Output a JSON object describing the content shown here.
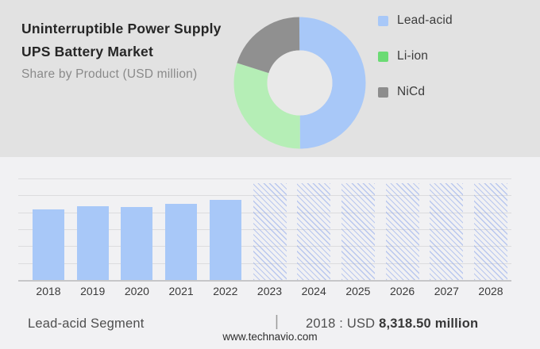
{
  "header": {
    "title_line1": "Uninterruptible Power Supply",
    "title_line2": "UPS Battery Market",
    "subtitle": "Share by Product (USD million)"
  },
  "legend": {
    "items": [
      {
        "label": "Lead-acid",
        "color": "#a8c8f8"
      },
      {
        "label": "Li-ion",
        "color": "#6bdb74"
      },
      {
        "label": "NiCd",
        "color": "#8d8d8d"
      }
    ]
  },
  "chart_data": [
    {
      "type": "pie",
      "variant": "donut",
      "title": "Share by Product (USD million)",
      "labels": [
        "Lead-acid",
        "Li-ion",
        "NiCd"
      ],
      "values_pct": [
        50,
        30,
        20
      ],
      "colors": [
        "#a8c8f8",
        "#b5eeb6",
        "#909090"
      ],
      "legend_position": "right"
    },
    {
      "type": "bar",
      "categories": [
        "2018",
        "2019",
        "2020",
        "2021",
        "2022",
        "2023",
        "2024",
        "2025",
        "2026",
        "2027",
        "2028"
      ],
      "values": [
        8318.5,
        8720,
        8630,
        9000,
        9470,
        null,
        null,
        null,
        null,
        null,
        null
      ],
      "forecast_years_hatched": [
        "2023",
        "2024",
        "2025",
        "2026",
        "2027",
        "2028"
      ],
      "ylim": [
        0,
        12000
      ],
      "gridline_step": 2000,
      "grid": true,
      "bar_color": "#a8c8f8",
      "xlabel": "",
      "ylabel": "",
      "unit": "USD million"
    }
  ],
  "footer": {
    "segment_label": "Lead-acid Segment",
    "separator": "|",
    "value_prefix": "2018 : USD ",
    "value_bold": "8,318.50 million",
    "website": "www.technavio.com"
  },
  "colors": {
    "hero_bg": "#e2e2e2",
    "lower_bg": "#f1f1f3",
    "accent_blue": "#a8c8f8",
    "donut_green": "#b5eeb6",
    "legend_green": "#6bdb74",
    "gray_segment": "#909090",
    "donut_hole": "#e9e9e9",
    "grid_line": "#dcdcde",
    "axis_line": "#c6c6c8",
    "hatch_stripe": "#8ba5eb",
    "title_text": "#262626",
    "subtitle_text": "#8a8a8a",
    "axis_label_text": "#3a3a3a",
    "footer_text": "#4f4f4f",
    "footer_bold_text": "#383838"
  }
}
